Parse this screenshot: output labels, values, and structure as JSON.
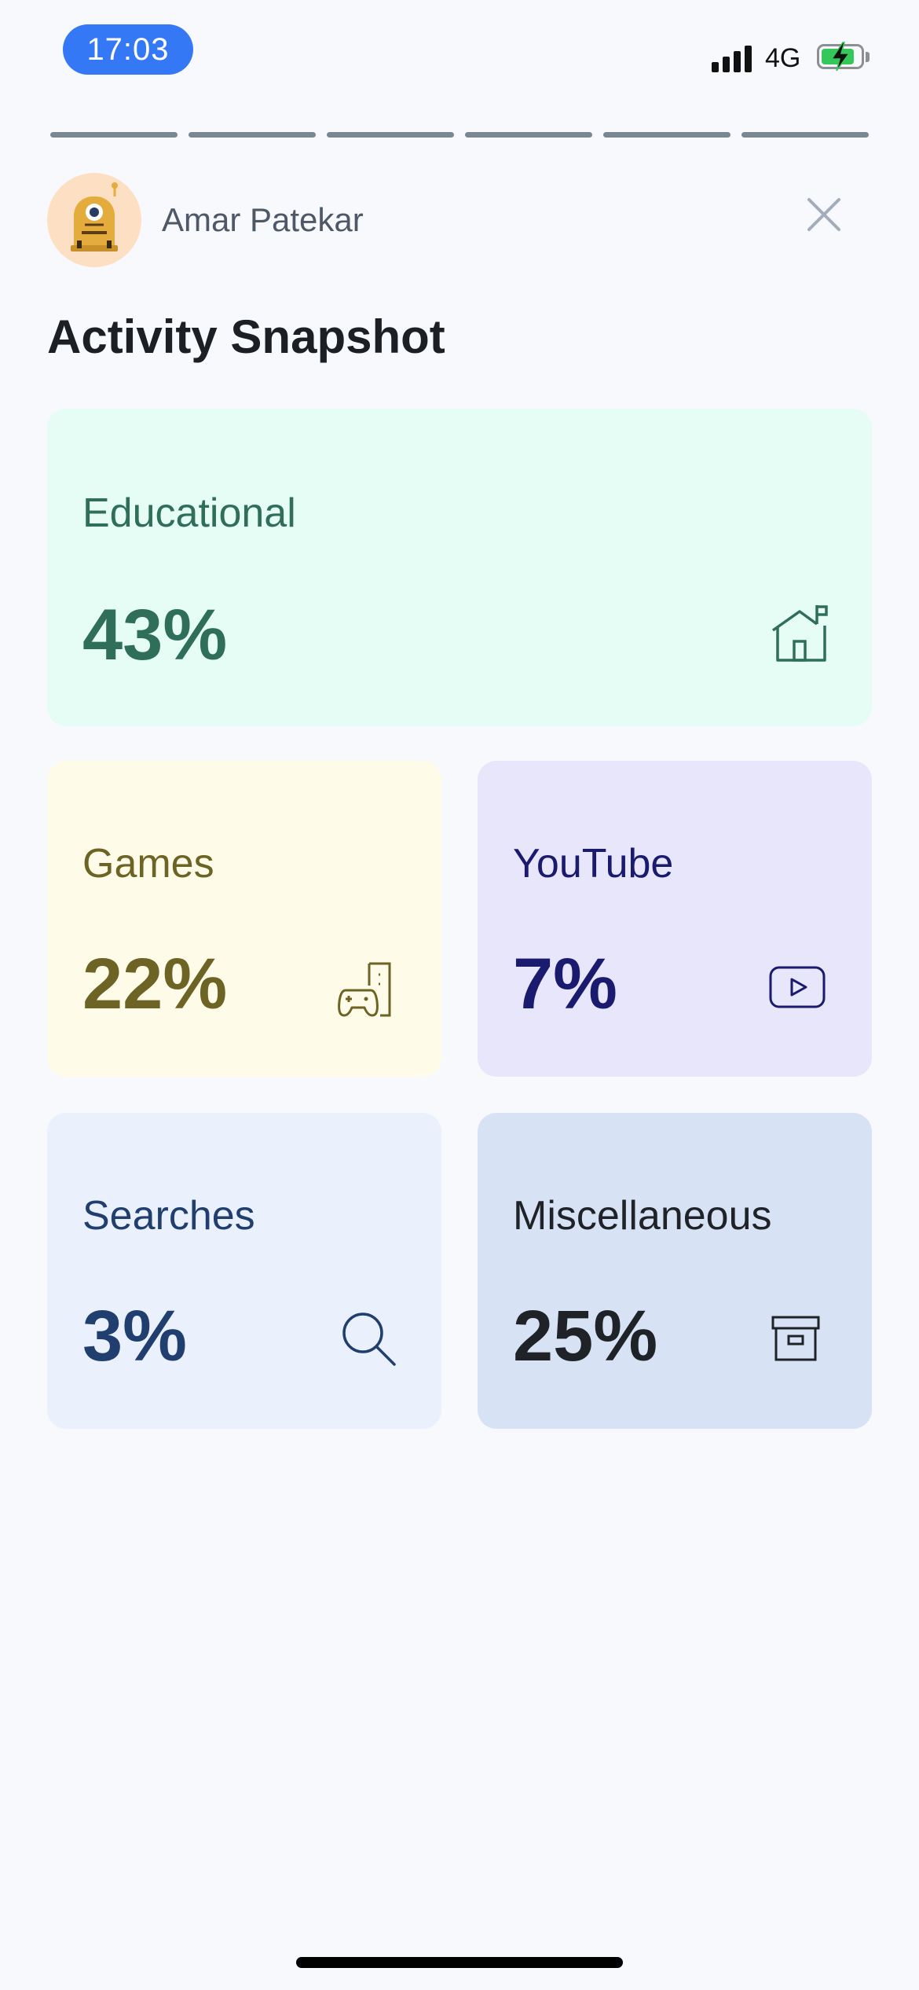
{
  "status_bar": {
    "time": "17:03",
    "network": "4G",
    "battery_level": 0.85,
    "signal_icon": "signal-bars-icon",
    "battery_icon": "battery-charging-icon"
  },
  "progress": {
    "segment_count": 6
  },
  "header": {
    "user_name": "Amar Patekar",
    "avatar_icon": "robot-avatar-icon",
    "close_icon": "close-icon"
  },
  "page": {
    "title": "Activity Snapshot"
  },
  "cards": {
    "educational": {
      "label": "Educational",
      "value": "43%",
      "icon": "house-flag-icon",
      "color": "#2f6e58",
      "background": "#e6fdf6"
    },
    "games": {
      "label": "Games",
      "value": "22%",
      "icon": "gamepad-building-icon",
      "color": "#6c6324",
      "background": "#fefbe8"
    },
    "youtube": {
      "label": "YouTube",
      "value": "7%",
      "icon": "play-icon",
      "color": "#1a1a6e",
      "background": "#e8e6fb"
    },
    "searches": {
      "label": "Searches",
      "value": "3%",
      "icon": "search-icon",
      "color": "#203e6e",
      "background": "#eaf1fd"
    },
    "miscellaneous": {
      "label": "Miscellaneous",
      "value": "25%",
      "icon": "archive-box-icon",
      "color": "#1f2328",
      "background": "#d7e3f4"
    }
  }
}
